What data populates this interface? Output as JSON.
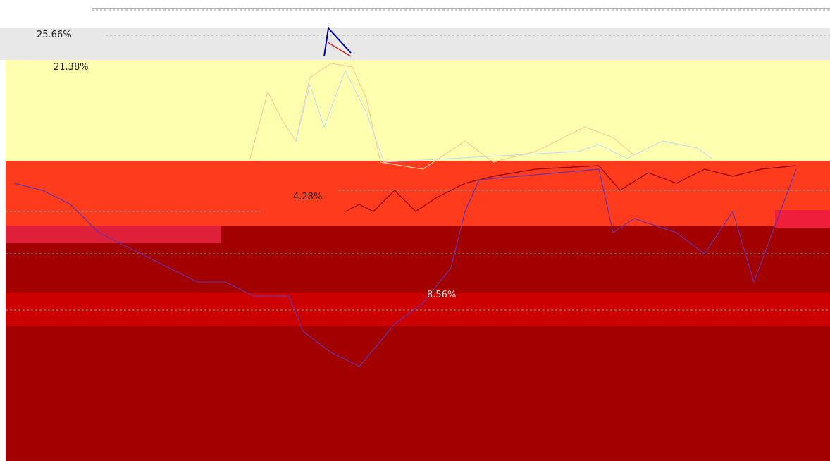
{
  "labels": [
    "25.66%",
    "21.38%",
    "4.28%",
    "8.56%"
  ]
}
